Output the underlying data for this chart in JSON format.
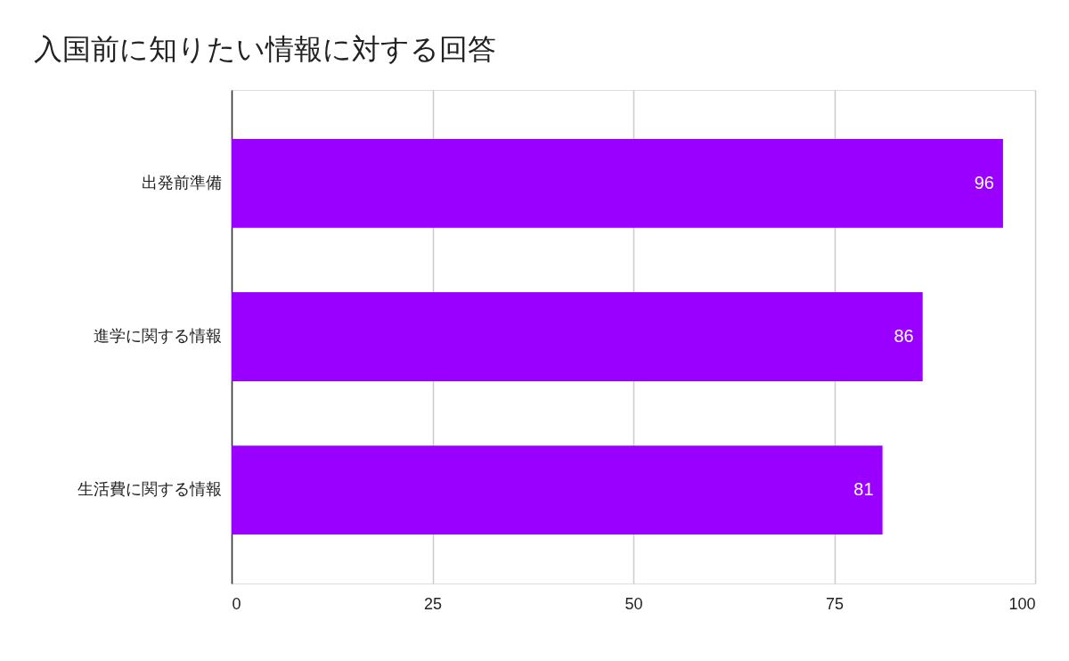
{
  "chart_data": {
    "type": "bar",
    "orientation": "horizontal",
    "title": "入国前に知りたい情報に対する回答",
    "categories": [
      "出発前準備",
      "進学に関する情報",
      "生活費に関する情報"
    ],
    "values": [
      96,
      86,
      81
    ],
    "color": "#9900ff",
    "xlim": [
      0,
      100
    ],
    "xticks": [
      0,
      25,
      50,
      75,
      100
    ],
    "grid": "x",
    "data_labels": true
  }
}
